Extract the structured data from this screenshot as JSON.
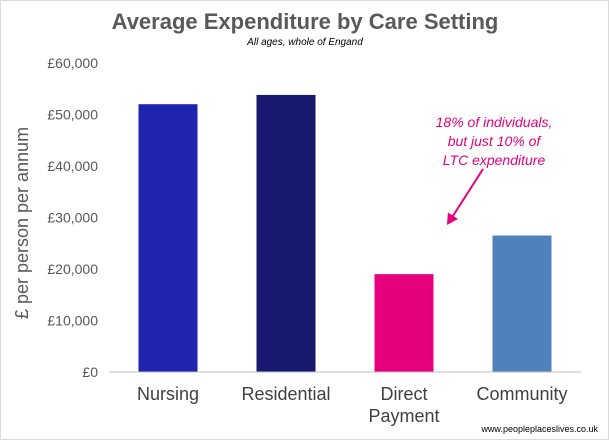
{
  "chart_data": {
    "type": "bar",
    "title": "Average Expenditure by Care Setting",
    "subtitle": "All ages, whole of Engand",
    "ylabel": "£ per person per annum",
    "xlabel": "",
    "categories": [
      [
        "Nursing"
      ],
      [
        "Residential"
      ],
      [
        "Direct",
        "Payment"
      ],
      [
        "Community"
      ]
    ],
    "values": [
      52000,
      53800,
      19000,
      26500
    ],
    "bar_colors": [
      "#1f23b0",
      "#171a6e",
      "#e6007e",
      "#4f81bd"
    ],
    "ylim": [
      0,
      60000
    ],
    "yticks": [
      0,
      10000,
      20000,
      30000,
      40000,
      50000,
      60000
    ],
    "ytick_labels": [
      "£0",
      "£10,000",
      "£20,000",
      "£30,000",
      "£40,000",
      "£50,000",
      "£60,000"
    ],
    "grid": false,
    "legend": "none",
    "annotation": {
      "lines": [
        "18% of individuals,",
        "but just 10% of",
        "LTC expenditure"
      ],
      "color": "#e6007e",
      "target_category": "Direct Payment"
    }
  },
  "footer": "www.peopleplaceslives.co.uk",
  "colors": {
    "title": "#595959",
    "axis": "#bfbfbf",
    "accent": "#e6007e"
  }
}
